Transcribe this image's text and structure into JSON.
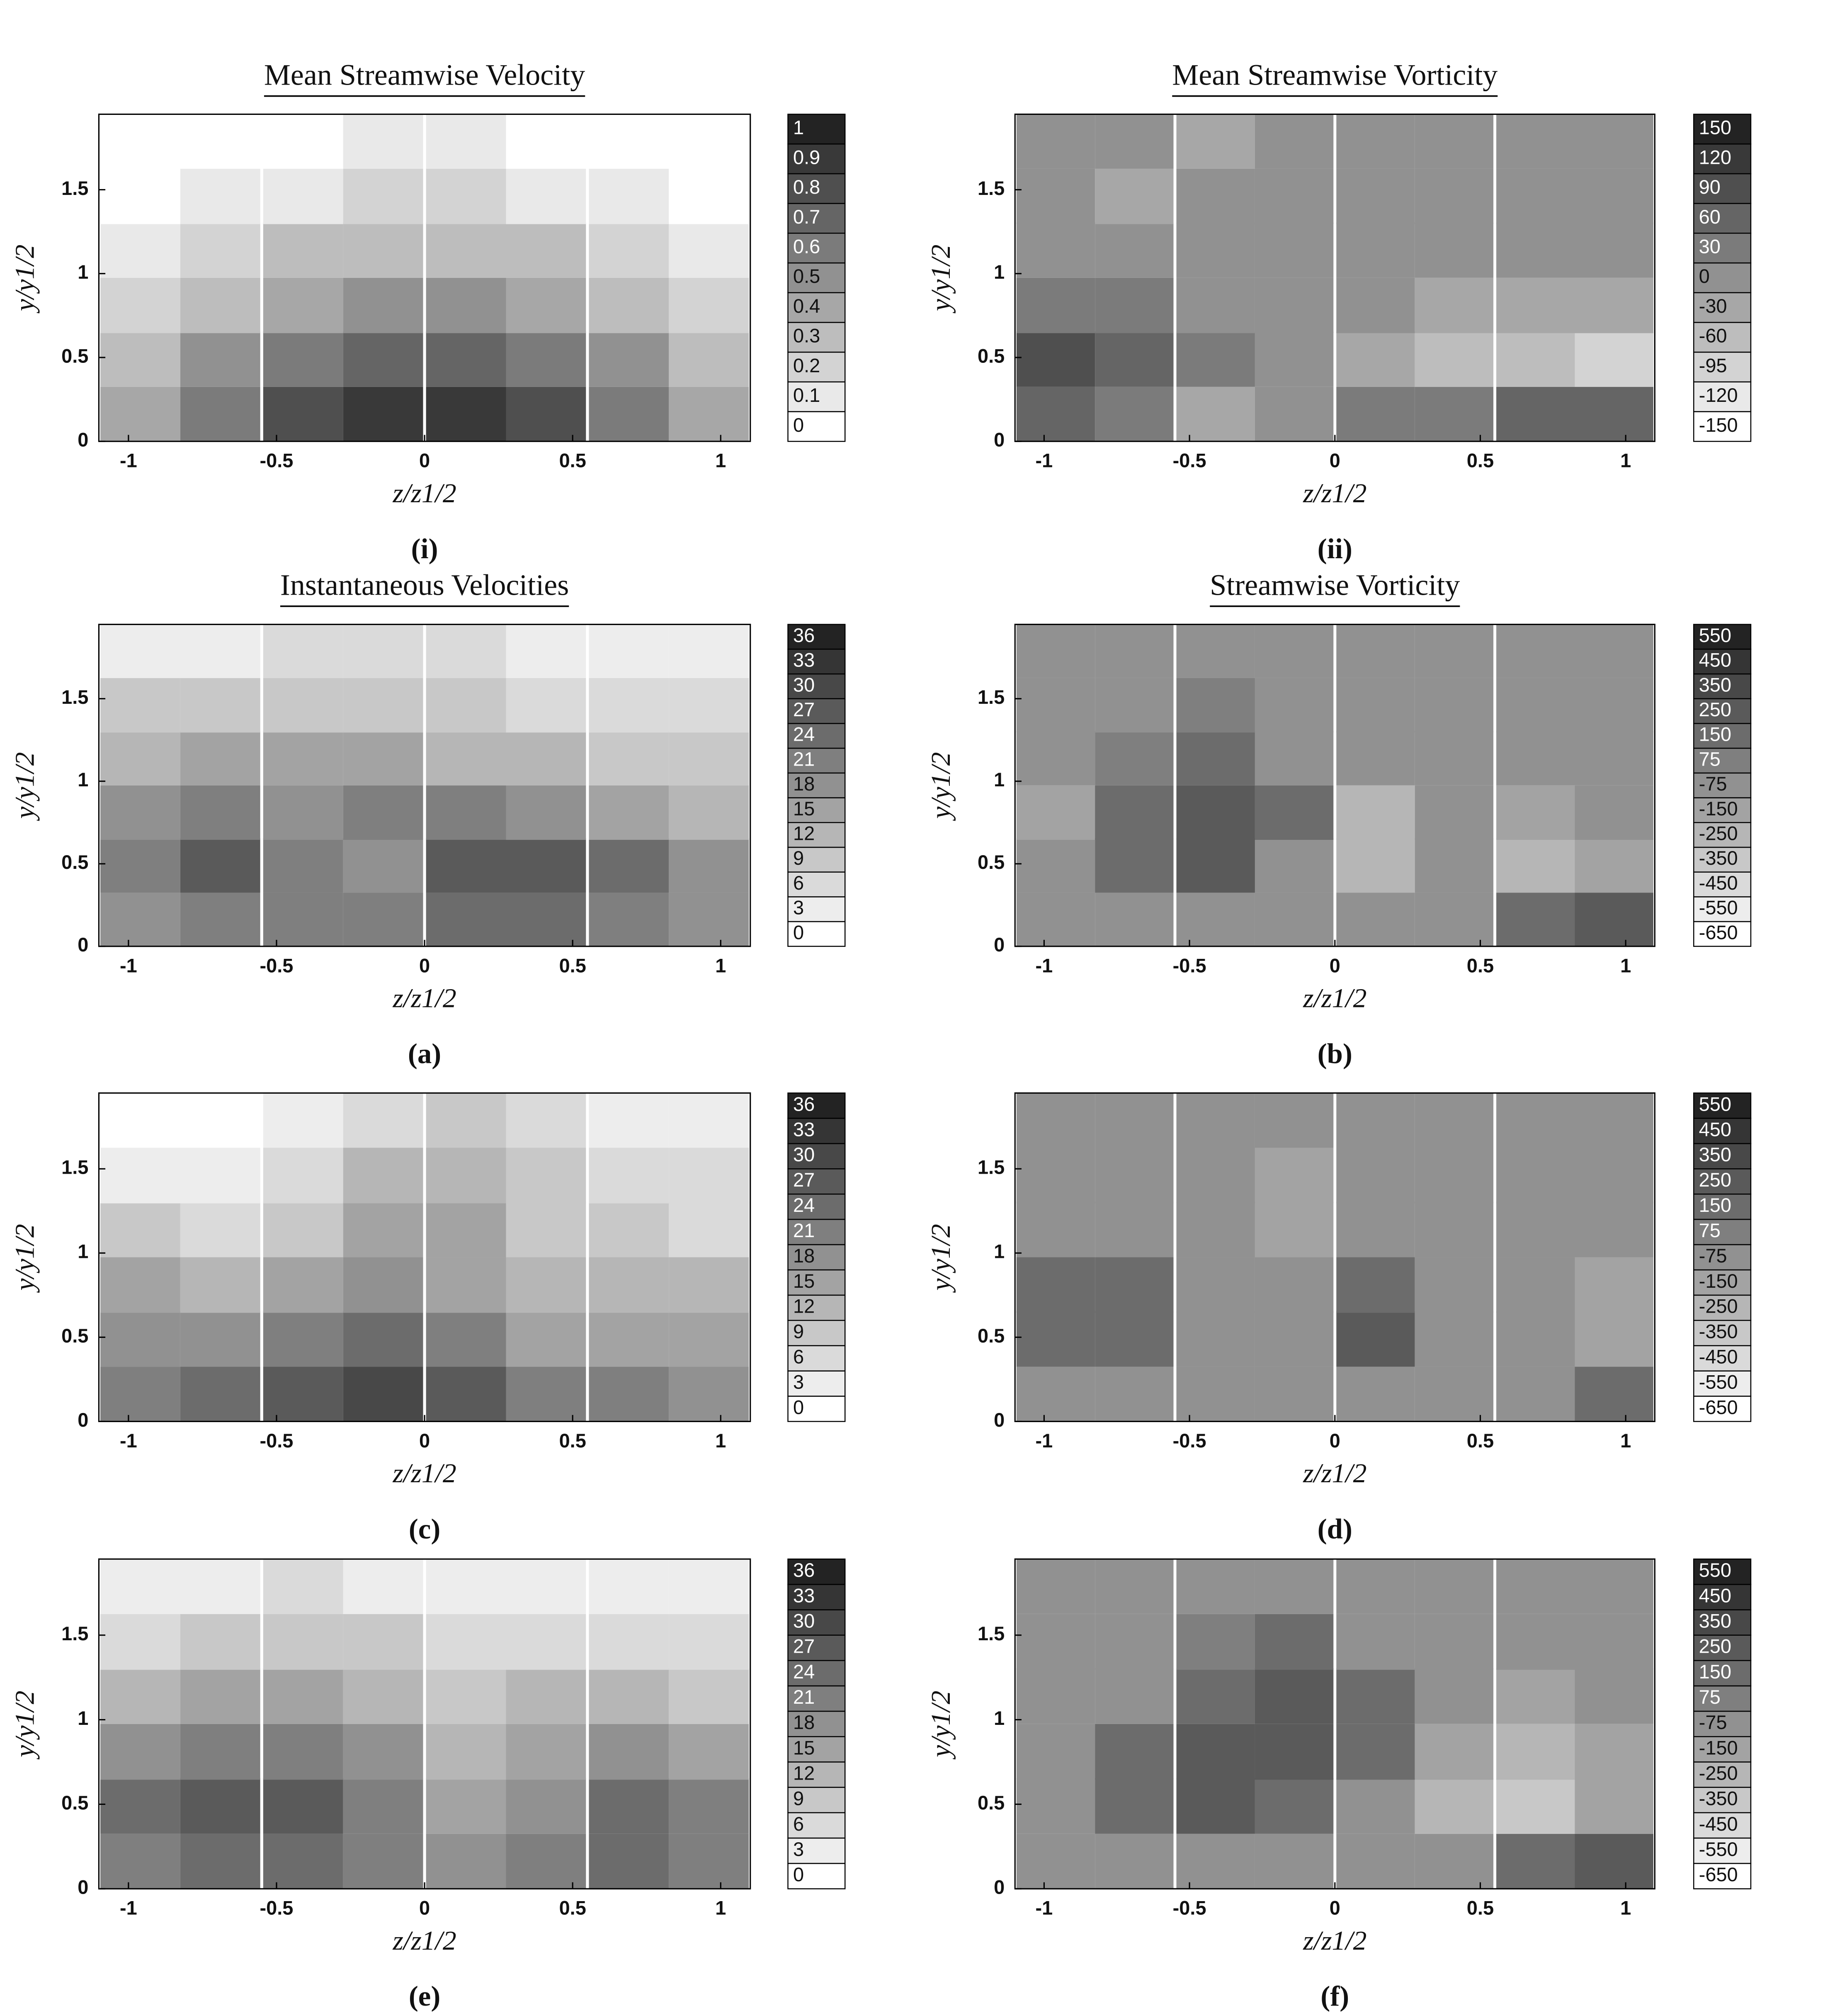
{
  "chart_data": [
    {
      "type": "contour",
      "title": "Mean Streamwise Velocity",
      "xlabel": "z/z1/2",
      "ylabel": "y/y1/2",
      "caption": "(i)",
      "xlim": [
        -1.1,
        1.1
      ],
      "ylim": [
        0,
        1.95
      ],
      "xticks": [
        -1,
        -0.5,
        0,
        0.5,
        1
      ],
      "yticks": [
        0,
        0.5,
        1,
        1.5
      ],
      "levels": [
        0,
        0.1,
        0.2,
        0.3,
        0.4,
        0.5,
        0.6,
        0.7,
        0.8,
        0.9,
        1
      ],
      "x": [
        -0.96,
        -0.69,
        -0.41,
        -0.14,
        0.14,
        0.41,
        0.69,
        0.96
      ],
      "y": [
        0.16,
        0.49,
        0.81,
        1.14,
        1.46,
        1.79
      ],
      "z": [
        [
          0.45,
          0.65,
          0.85,
          0.95,
          0.95,
          0.85,
          0.65,
          0.45
        ],
        [
          0.35,
          0.5,
          0.65,
          0.75,
          0.75,
          0.65,
          0.5,
          0.35
        ],
        [
          0.25,
          0.35,
          0.45,
          0.52,
          0.52,
          0.45,
          0.35,
          0.25
        ],
        [
          0.12,
          0.2,
          0.3,
          0.35,
          0.35,
          0.3,
          0.2,
          0.12
        ],
        [
          0.05,
          0.1,
          0.15,
          0.22,
          0.22,
          0.15,
          0.1,
          0.05
        ],
        [
          0.02,
          0.05,
          0.08,
          0.1,
          0.1,
          0.08,
          0.05,
          0.02
        ]
      ]
    },
    {
      "type": "contour",
      "title": "Mean Streamwise Vorticity",
      "xlabel": "z/z1/2",
      "ylabel": "y/y1/2",
      "caption": "(ii)",
      "xlim": [
        -1.1,
        1.1
      ],
      "ylim": [
        0,
        1.95
      ],
      "xticks": [
        -1,
        -0.5,
        0,
        0.5,
        1
      ],
      "yticks": [
        0,
        0.5,
        1,
        1.5
      ],
      "levels": [
        -150,
        -120,
        -95,
        -60,
        -30,
        0,
        30,
        60,
        90,
        120,
        150
      ],
      "x": [
        -0.96,
        -0.69,
        -0.41,
        -0.14,
        0.14,
        0.41,
        0.69,
        0.96
      ],
      "y": [
        0.16,
        0.49,
        0.81,
        1.14,
        1.46,
        1.79
      ],
      "z": [
        [
          60,
          30,
          -30,
          0,
          30,
          30,
          60,
          60
        ],
        [
          90,
          60,
          30,
          0,
          -30,
          -60,
          -60,
          -95
        ],
        [
          30,
          30,
          0,
          0,
          0,
          -30,
          -30,
          -30
        ],
        [
          0,
          0,
          0,
          0,
          0,
          0,
          0,
          0
        ],
        [
          0,
          -30,
          0,
          0,
          0,
          0,
          0,
          0
        ],
        [
          0,
          0,
          -30,
          0,
          0,
          0,
          0,
          0
        ]
      ]
    },
    {
      "type": "contour",
      "title": "Instantaneous Velocities",
      "xlabel": "z/z1/2",
      "ylabel": "y/y1/2",
      "caption": "(a)",
      "xlim": [
        -1.1,
        1.1
      ],
      "ylim": [
        0,
        1.95
      ],
      "xticks": [
        -1,
        -0.5,
        0,
        0.5,
        1
      ],
      "yticks": [
        0,
        0.5,
        1,
        1.5
      ],
      "levels": [
        0,
        3,
        6,
        9,
        12,
        15,
        18,
        21,
        24,
        27,
        30,
        33,
        36
      ],
      "x": [
        -0.96,
        -0.69,
        -0.41,
        -0.14,
        0.14,
        0.41,
        0.69,
        0.96
      ],
      "y": [
        0.16,
        0.49,
        0.81,
        1.14,
        1.46,
        1.79
      ],
      "z": [
        [
          18,
          21,
          21,
          21,
          24,
          24,
          21,
          18
        ],
        [
          21,
          27,
          21,
          18,
          27,
          27,
          24,
          18
        ],
        [
          18,
          21,
          18,
          21,
          21,
          18,
          15,
          12
        ],
        [
          12,
          15,
          15,
          15,
          12,
          12,
          9,
          9
        ],
        [
          9,
          9,
          9,
          9,
          9,
          6,
          6,
          6
        ],
        [
          3,
          3,
          6,
          6,
          6,
          3,
          3,
          3
        ]
      ]
    },
    {
      "type": "contour",
      "title": "Streamwise Vorticity",
      "xlabel": "z/z1/2",
      "ylabel": "y/y1/2",
      "caption": "(b)",
      "xlim": [
        -1.1,
        1.1
      ],
      "ylim": [
        0,
        1.95
      ],
      "xticks": [
        -1,
        -0.5,
        0,
        0.5,
        1
      ],
      "yticks": [
        0,
        0.5,
        1,
        1.5
      ],
      "levels": [
        -650,
        -550,
        -450,
        -350,
        -250,
        -150,
        -75,
        75,
        150,
        250,
        350,
        450,
        550
      ],
      "x": [
        -0.96,
        -0.69,
        -0.41,
        -0.14,
        0.14,
        0.41,
        0.69,
        0.96
      ],
      "y": [
        0.16,
        0.49,
        0.81,
        1.14,
        1.46,
        1.79
      ],
      "z": [
        [
          0,
          0,
          0,
          0,
          0,
          0,
          150,
          250
        ],
        [
          0,
          150,
          250,
          0,
          -250,
          0,
          -250,
          -150
        ],
        [
          -150,
          150,
          250,
          150,
          -250,
          0,
          -150,
          0
        ],
        [
          0,
          75,
          150,
          0,
          0,
          0,
          0,
          0
        ],
        [
          0,
          0,
          75,
          0,
          0,
          0,
          0,
          0
        ],
        [
          0,
          0,
          0,
          0,
          0,
          0,
          0,
          0
        ]
      ]
    },
    {
      "type": "contour",
      "xlabel": "z/z1/2",
      "ylabel": "y/y1/2",
      "caption": "(c)",
      "xlim": [
        -1.1,
        1.1
      ],
      "ylim": [
        0,
        1.95
      ],
      "xticks": [
        -1,
        -0.5,
        0,
        0.5,
        1
      ],
      "yticks": [
        0,
        0.5,
        1,
        1.5
      ],
      "levels": [
        0,
        3,
        6,
        9,
        12,
        15,
        18,
        21,
        24,
        27,
        30,
        33,
        36
      ],
      "x": [
        -0.96,
        -0.69,
        -0.41,
        -0.14,
        0.14,
        0.41,
        0.69,
        0.96
      ],
      "y": [
        0.16,
        0.49,
        0.81,
        1.14,
        1.46,
        1.79
      ],
      "z": [
        [
          21,
          24,
          27,
          30,
          27,
          21,
          21,
          18
        ],
        [
          18,
          18,
          21,
          24,
          21,
          15,
          15,
          15
        ],
        [
          15,
          12,
          15,
          18,
          15,
          12,
          12,
          12
        ],
        [
          9,
          6,
          9,
          15,
          15,
          9,
          9,
          6
        ],
        [
          3,
          3,
          6,
          12,
          12,
          9,
          6,
          6
        ],
        [
          0,
          0,
          3,
          6,
          9,
          6,
          3,
          3
        ]
      ]
    },
    {
      "type": "contour",
      "xlabel": "z/z1/2",
      "ylabel": "y/y1/2",
      "caption": "(d)",
      "xlim": [
        -1.1,
        1.1
      ],
      "ylim": [
        0,
        1.95
      ],
      "xticks": [
        -1,
        -0.5,
        0,
        0.5,
        1
      ],
      "yticks": [
        0,
        0.5,
        1,
        1.5
      ],
      "levels": [
        -650,
        -550,
        -450,
        -350,
        -250,
        -150,
        -75,
        75,
        150,
        250,
        350,
        450,
        550
      ],
      "x": [
        -0.96,
        -0.69,
        -0.41,
        -0.14,
        0.14,
        0.41,
        0.69,
        0.96
      ],
      "y": [
        0.16,
        0.49,
        0.81,
        1.14,
        1.46,
        1.79
      ],
      "z": [
        [
          0,
          0,
          0,
          0,
          0,
          0,
          0,
          150
        ],
        [
          150,
          150,
          0,
          0,
          250,
          0,
          0,
          -150
        ],
        [
          150,
          150,
          0,
          0,
          150,
          0,
          0,
          -150
        ],
        [
          0,
          0,
          0,
          -150,
          0,
          0,
          0,
          0
        ],
        [
          0,
          0,
          0,
          -150,
          0,
          0,
          0,
          0
        ],
        [
          0,
          0,
          0,
          0,
          0,
          0,
          0,
          0
        ]
      ]
    },
    {
      "type": "contour",
      "xlabel": "z/z1/2",
      "ylabel": "y/y1/2",
      "caption": "(e)",
      "xlim": [
        -1.1,
        1.1
      ],
      "ylim": [
        0,
        1.95
      ],
      "xticks": [
        -1,
        -0.5,
        0,
        0.5,
        1
      ],
      "yticks": [
        0,
        0.5,
        1,
        1.5
      ],
      "levels": [
        0,
        3,
        6,
        9,
        12,
        15,
        18,
        21,
        24,
        27,
        30,
        33,
        36
      ],
      "x": [
        -0.96,
        -0.69,
        -0.41,
        -0.14,
        0.14,
        0.41,
        0.69,
        0.96
      ],
      "y": [
        0.16,
        0.49,
        0.81,
        1.14,
        1.46,
        1.79
      ],
      "z": [
        [
          21,
          24,
          24,
          21,
          18,
          21,
          24,
          21
        ],
        [
          24,
          27,
          27,
          21,
          15,
          18,
          24,
          21
        ],
        [
          18,
          21,
          21,
          18,
          12,
          15,
          18,
          15
        ],
        [
          12,
          15,
          15,
          12,
          9,
          12,
          12,
          9
        ],
        [
          6,
          9,
          9,
          9,
          6,
          6,
          6,
          6
        ],
        [
          3,
          3,
          6,
          3,
          3,
          3,
          3,
          3
        ]
      ]
    },
    {
      "type": "contour",
      "xlabel": "z/z1/2",
      "ylabel": "y/y1/2",
      "caption": "(f)",
      "xlim": [
        -1.1,
        1.1
      ],
      "ylim": [
        0,
        1.95
      ],
      "xticks": [
        -1,
        -0.5,
        0,
        0.5,
        1
      ],
      "yticks": [
        0,
        0.5,
        1,
        1.5
      ],
      "levels": [
        -650,
        -550,
        -450,
        -350,
        -250,
        -150,
        -75,
        75,
        150,
        250,
        350,
        450,
        550
      ],
      "x": [
        -0.96,
        -0.69,
        -0.41,
        -0.14,
        0.14,
        0.41,
        0.69,
        0.96
      ],
      "y": [
        0.16,
        0.49,
        0.81,
        1.14,
        1.46,
        1.79
      ],
      "z": [
        [
          0,
          0,
          0,
          0,
          0,
          0,
          150,
          250
        ],
        [
          0,
          150,
          250,
          150,
          0,
          -250,
          -350,
          -150
        ],
        [
          0,
          150,
          250,
          250,
          150,
          -150,
          -250,
          -150
        ],
        [
          0,
          0,
          150,
          250,
          150,
          0,
          -150,
          0
        ],
        [
          0,
          0,
          75,
          150,
          0,
          0,
          0,
          0
        ],
        [
          0,
          0,
          0,
          0,
          0,
          0,
          0,
          0
        ]
      ]
    }
  ]
}
